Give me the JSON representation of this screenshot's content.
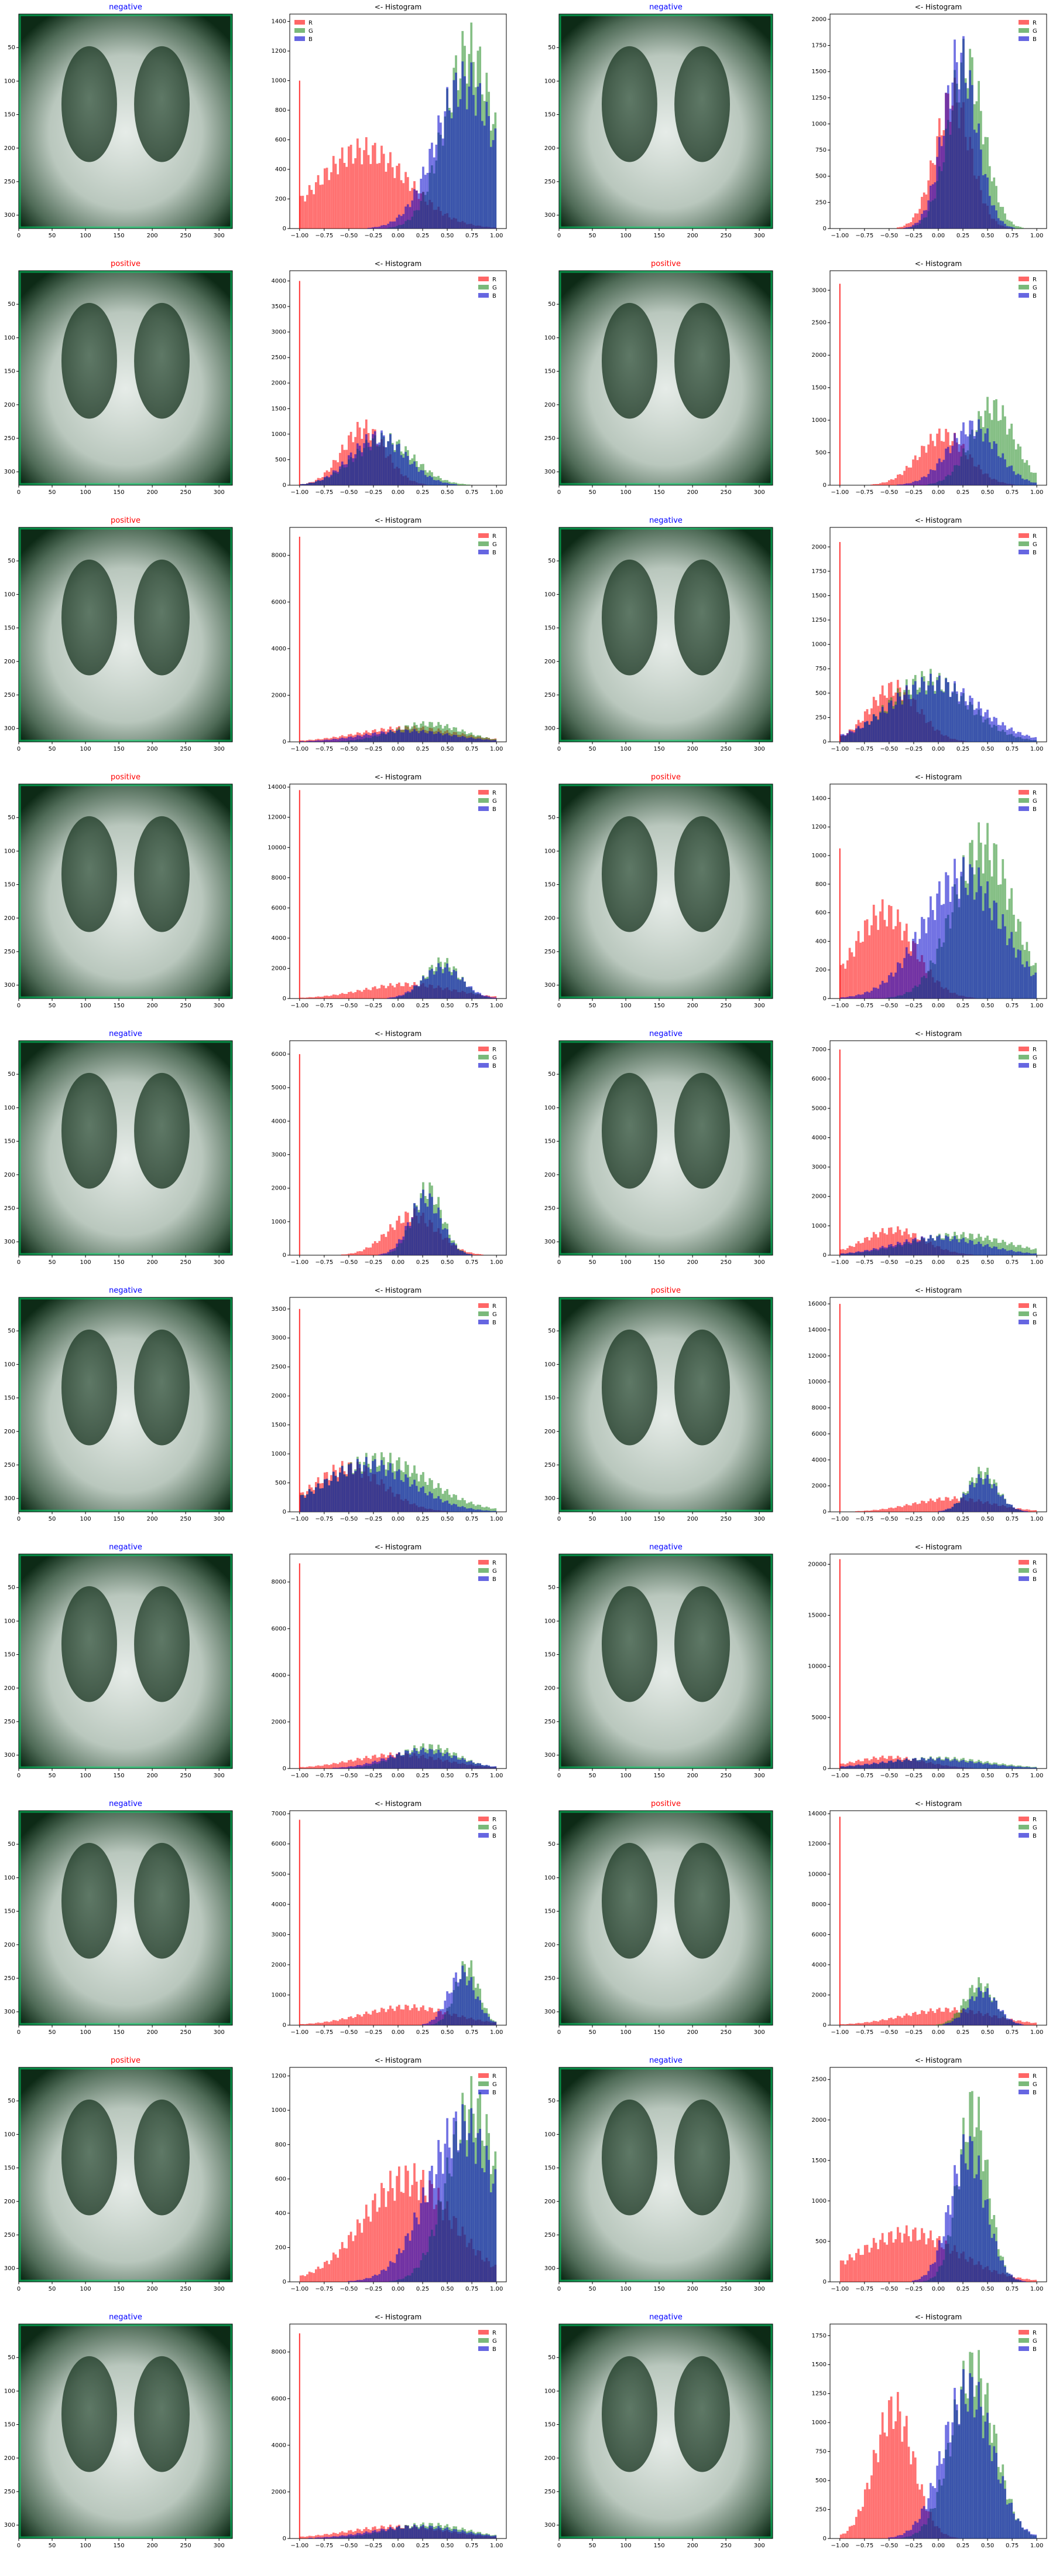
{
  "hist_title": "<- Histogram",
  "legend": [
    "R",
    "G",
    "B"
  ],
  "colors": {
    "negative": "#0000ff",
    "positive": "#ff0000",
    "R": "#ff0000",
    "G": "#228b22",
    "B": "#0000cd",
    "xray_tint": "#00e070"
  },
  "image_ticks": [
    0,
    50,
    100,
    150,
    200,
    250,
    300
  ],
  "hist_xticks": [
    "−1.00",
    "−0.75",
    "−0.50",
    "−0.25",
    "0.00",
    "0.25",
    "0.50",
    "0.75",
    "1.00"
  ],
  "chart_data": [
    {
      "type": "bar",
      "label": "negative",
      "title": "<- Histogram",
      "yticks": [
        0,
        200,
        400,
        600,
        800,
        1000,
        1200,
        1400
      ],
      "ylim": [
        0,
        1450
      ],
      "legend_placement": "top-left",
      "spike_R": 1000,
      "series": [
        {
          "name": "R",
          "mu": -0.35,
          "peak": 620,
          "sigma": 0.45
        },
        {
          "name": "G",
          "mu": 0.72,
          "peak": 1400,
          "sigma": 0.25
        },
        {
          "name": "B",
          "mu": 0.68,
          "peak": 1150,
          "sigma": 0.3
        }
      ],
      "xlim": [
        -1.1,
        1.1
      ]
    },
    {
      "type": "bar",
      "label": "negative",
      "title": "<- Histogram",
      "yticks": [
        0,
        250,
        500,
        750,
        1000,
        1250,
        1500,
        1750,
        2000
      ],
      "ylim": [
        0,
        2050
      ],
      "legend_placement": "top-right",
      "spike_R": 0,
      "series": [
        {
          "name": "R",
          "mu": 0.15,
          "peak": 1450,
          "sigma": 0.18
        },
        {
          "name": "G",
          "mu": 0.28,
          "peak": 1850,
          "sigma": 0.18
        },
        {
          "name": "B",
          "mu": 0.22,
          "peak": 1900,
          "sigma": 0.17
        }
      ],
      "xlim": [
        -1.1,
        1.1
      ]
    },
    {
      "type": "bar",
      "label": "positive",
      "title": "<- Histogram",
      "yticks": [
        0,
        500,
        1000,
        1500,
        2000,
        2500,
        3000,
        3500,
        4000
      ],
      "ylim": [
        0,
        4200
      ],
      "legend_placement": "top-right",
      "spike_R": 4000,
      "series": [
        {
          "name": "R",
          "mu": -0.35,
          "peak": 1300,
          "sigma": 0.22
        },
        {
          "name": "G",
          "mu": -0.15,
          "peak": 1050,
          "sigma": 0.3
        },
        {
          "name": "B",
          "mu": -0.2,
          "peak": 1100,
          "sigma": 0.28
        }
      ],
      "xlim": [
        -1.1,
        1.1
      ]
    },
    {
      "type": "bar",
      "label": "positive",
      "title": "<- Histogram",
      "yticks": [
        0,
        500,
        1000,
        1500,
        2000,
        2500,
        3000
      ],
      "ylim": [
        0,
        3300
      ],
      "legend_placement": "top-right",
      "spike_R": 3100,
      "series": [
        {
          "name": "R",
          "mu": 0.05,
          "peak": 900,
          "sigma": 0.25
        },
        {
          "name": "G",
          "mu": 0.55,
          "peak": 1400,
          "sigma": 0.22
        },
        {
          "name": "B",
          "mu": 0.35,
          "peak": 1050,
          "sigma": 0.25
        }
      ],
      "xlim": [
        -1.1,
        1.1
      ]
    },
    {
      "type": "bar",
      "label": "positive",
      "title": "<- Histogram",
      "yticks": [
        0,
        2000,
        4000,
        6000,
        8000
      ],
      "ylim": [
        0,
        9200
      ],
      "legend_placement": "top-right",
      "spike_R": 8800,
      "series": [
        {
          "name": "R",
          "mu": 0.1,
          "peak": 700,
          "sigma": 0.5
        },
        {
          "name": "G",
          "mu": 0.3,
          "peak": 900,
          "sigma": 0.35
        },
        {
          "name": "B",
          "mu": 0.1,
          "peak": 550,
          "sigma": 0.45
        }
      ],
      "xlim": [
        -1.1,
        1.1
      ]
    },
    {
      "type": "bar",
      "label": "negative",
      "title": "<- Histogram",
      "yticks": [
        0,
        250,
        500,
        750,
        1000,
        1250,
        1500,
        1750,
        2000
      ],
      "ylim": [
        0,
        2200
      ],
      "legend_placement": "top-right",
      "spike_R": 2050,
      "series": [
        {
          "name": "R",
          "mu": -0.45,
          "peak": 650,
          "sigma": 0.25
        },
        {
          "name": "G",
          "mu": -0.1,
          "peak": 750,
          "sigma": 0.4
        },
        {
          "name": "B",
          "mu": -0.05,
          "peak": 700,
          "sigma": 0.45
        }
      ],
      "xlim": [
        -1.1,
        1.1
      ]
    },
    {
      "type": "bar",
      "label": "positive",
      "title": "<- Histogram",
      "yticks": [
        0,
        2000,
        4000,
        6000,
        8000,
        10000,
        12000,
        14000
      ],
      "ylim": [
        0,
        14200
      ],
      "legend_placement": "top-right",
      "spike_R": 13800,
      "series": [
        {
          "name": "R",
          "mu": 0.1,
          "peak": 1100,
          "sigma": 0.45
        },
        {
          "name": "G",
          "mu": 0.45,
          "peak": 2800,
          "sigma": 0.18
        },
        {
          "name": "B",
          "mu": 0.45,
          "peak": 2400,
          "sigma": 0.2
        }
      ],
      "xlim": [
        -1.1,
        1.1
      ]
    },
    {
      "type": "bar",
      "label": "positive",
      "title": "<- Histogram",
      "yticks": [
        0,
        200,
        400,
        600,
        800,
        1000,
        1200,
        1400
      ],
      "ylim": [
        0,
        1500
      ],
      "legend_placement": "top-right",
      "spike_R": 1050,
      "series": [
        {
          "name": "R",
          "mu": -0.55,
          "peak": 700,
          "sigma": 0.3
        },
        {
          "name": "G",
          "mu": 0.45,
          "peak": 1250,
          "sigma": 0.3
        },
        {
          "name": "B",
          "mu": 0.25,
          "peak": 1000,
          "sigma": 0.4
        }
      ],
      "xlim": [
        -1.1,
        1.1
      ]
    },
    {
      "type": "bar",
      "label": "negative",
      "title": "<- Histogram",
      "yticks": [
        0,
        1000,
        2000,
        3000,
        4000,
        5000,
        6000
      ],
      "ylim": [
        0,
        6400
      ],
      "legend_placement": "top-right",
      "spike_R": 6000,
      "series": [
        {
          "name": "R",
          "mu": 0.15,
          "peak": 1400,
          "sigma": 0.25
        },
        {
          "name": "G",
          "mu": 0.3,
          "peak": 2300,
          "sigma": 0.15
        },
        {
          "name": "B",
          "mu": 0.28,
          "peak": 2000,
          "sigma": 0.16
        }
      ],
      "xlim": [
        -1.1,
        1.1
      ]
    },
    {
      "type": "bar",
      "label": "negative",
      "title": "<- Histogram",
      "yticks": [
        0,
        1000,
        2000,
        3000,
        4000,
        5000,
        6000,
        7000
      ],
      "ylim": [
        0,
        7300
      ],
      "legend_placement": "top-right",
      "spike_R": 7000,
      "series": [
        {
          "name": "R",
          "mu": -0.45,
          "peak": 1000,
          "sigma": 0.3
        },
        {
          "name": "G",
          "mu": 0.2,
          "peak": 800,
          "sigma": 0.5
        },
        {
          "name": "B",
          "mu": 0.0,
          "peak": 700,
          "sigma": 0.45
        }
      ],
      "xlim": [
        -1.1,
        1.1
      ]
    },
    {
      "type": "bar",
      "label": "negative",
      "title": "<- Histogram",
      "yticks": [
        0,
        500,
        1000,
        1500,
        2000,
        2500,
        3000,
        3500
      ],
      "ylim": [
        0,
        3700
      ],
      "legend_placement": "top-right",
      "spike_R": 3500,
      "series": [
        {
          "name": "R",
          "mu": -0.5,
          "peak": 900,
          "sigma": 0.35
        },
        {
          "name": "G",
          "mu": -0.2,
          "peak": 1050,
          "sigma": 0.5
        },
        {
          "name": "B",
          "mu": -0.3,
          "peak": 950,
          "sigma": 0.45
        }
      ],
      "xlim": [
        -1.1,
        1.1
      ]
    },
    {
      "type": "bar",
      "label": "positive",
      "title": "<- Histogram",
      "yticks": [
        0,
        2000,
        4000,
        6000,
        8000,
        10000,
        12000,
        14000,
        16000
      ],
      "ylim": [
        0,
        16500
      ],
      "legend_placement": "top-right",
      "spike_R": 16000,
      "series": [
        {
          "name": "R",
          "mu": 0.15,
          "peak": 1200,
          "sigma": 0.4
        },
        {
          "name": "G",
          "mu": 0.45,
          "peak": 3600,
          "sigma": 0.15
        },
        {
          "name": "B",
          "mu": 0.45,
          "peak": 3000,
          "sigma": 0.16
        }
      ],
      "xlim": [
        -1.1,
        1.1
      ]
    },
    {
      "type": "bar",
      "label": "negative",
      "title": "<- Histogram",
      "yticks": [
        0,
        2000,
        4000,
        6000,
        8000
      ],
      "ylim": [
        0,
        9200
      ],
      "legend_placement": "top-right",
      "spike_R": 8800,
      "series": [
        {
          "name": "R",
          "mu": 0.0,
          "peak": 700,
          "sigma": 0.45
        },
        {
          "name": "G",
          "mu": 0.3,
          "peak": 1100,
          "sigma": 0.3
        },
        {
          "name": "B",
          "mu": 0.25,
          "peak": 900,
          "sigma": 0.35
        }
      ],
      "xlim": [
        -1.1,
        1.1
      ]
    },
    {
      "type": "bar",
      "label": "negative",
      "title": "<- Histogram",
      "yticks": [
        0,
        5000,
        10000,
        15000,
        20000
      ],
      "ylim": [
        0,
        21000
      ],
      "legend_placement": "top-right",
      "spike_R": 20500,
      "series": [
        {
          "name": "R",
          "mu": -0.5,
          "peak": 1300,
          "sigma": 0.35
        },
        {
          "name": "G",
          "mu": 0.0,
          "peak": 1200,
          "sigma": 0.5
        },
        {
          "name": "B",
          "mu": -0.1,
          "peak": 1100,
          "sigma": 0.5
        }
      ],
      "xlim": [
        -1.1,
        1.1
      ]
    },
    {
      "type": "bar",
      "label": "negative",
      "title": "<- Histogram",
      "yticks": [
        0,
        1000,
        2000,
        3000,
        4000,
        5000,
        6000,
        7000
      ],
      "ylim": [
        0,
        7100
      ],
      "legend_placement": "top-right",
      "spike_R": 6800,
      "series": [
        {
          "name": "R",
          "mu": 0.1,
          "peak": 700,
          "sigma": 0.45
        },
        {
          "name": "G",
          "mu": 0.7,
          "peak": 2300,
          "sigma": 0.12
        },
        {
          "name": "B",
          "mu": 0.65,
          "peak": 2000,
          "sigma": 0.14
        }
      ],
      "xlim": [
        -1.1,
        1.1
      ]
    },
    {
      "type": "bar",
      "label": "positive",
      "title": "<- Histogram",
      "yticks": [
        0,
        2000,
        4000,
        6000,
        8000,
        10000,
        12000,
        14000
      ],
      "ylim": [
        0,
        14200
      ],
      "legend_placement": "top-right",
      "spike_R": 13800,
      "series": [
        {
          "name": "R",
          "mu": 0.1,
          "peak": 1200,
          "sigma": 0.45
        },
        {
          "name": "G",
          "mu": 0.42,
          "peak": 3200,
          "sigma": 0.15
        },
        {
          "name": "B",
          "mu": 0.45,
          "peak": 2600,
          "sigma": 0.15
        }
      ],
      "xlim": [
        -1.1,
        1.1
      ]
    },
    {
      "type": "bar",
      "label": "positive",
      "title": "<- Histogram",
      "yticks": [
        0,
        200,
        400,
        600,
        800,
        1000,
        1200
      ],
      "ylim": [
        0,
        1250
      ],
      "legend_placement": "top-right",
      "spike_R": 0,
      "series": [
        {
          "name": "R",
          "mu": 0.1,
          "peak": 700,
          "sigma": 0.45
        },
        {
          "name": "G",
          "mu": 0.75,
          "peak": 1200,
          "sigma": 0.25
        },
        {
          "name": "B",
          "mu": 0.65,
          "peak": 1050,
          "sigma": 0.35
        }
      ],
      "xlim": [
        -1.1,
        1.1
      ]
    },
    {
      "type": "bar",
      "label": "negative",
      "title": "<- Histogram",
      "yticks": [
        0,
        500,
        1000,
        1500,
        2000,
        2500
      ],
      "ylim": [
        0,
        2650
      ],
      "legend_placement": "top-right",
      "spike_R": 0,
      "series": [
        {
          "name": "R",
          "mu": -0.3,
          "peak": 700,
          "sigma": 0.5
        },
        {
          "name": "G",
          "mu": 0.35,
          "peak": 2500,
          "sigma": 0.15
        },
        {
          "name": "B",
          "mu": 0.3,
          "peak": 1900,
          "sigma": 0.18
        }
      ],
      "xlim": [
        -1.1,
        1.1
      ]
    },
    {
      "type": "bar",
      "label": "negative",
      "title": "<- Histogram",
      "yticks": [
        0,
        2000,
        4000,
        6000,
        8000
      ],
      "ylim": [
        0,
        9200
      ],
      "legend_placement": "top-right",
      "spike_R": 8800,
      "series": [
        {
          "name": "R",
          "mu": 0.0,
          "peak": 600,
          "sigma": 0.5
        },
        {
          "name": "G",
          "mu": 0.3,
          "peak": 700,
          "sigma": 0.4
        },
        {
          "name": "B",
          "mu": 0.2,
          "peak": 600,
          "sigma": 0.45
        }
      ],
      "xlim": [
        -1.1,
        1.1
      ]
    },
    {
      "type": "bar",
      "label": "negative",
      "title": "<- Histogram",
      "yticks": [
        0,
        250,
        500,
        750,
        1000,
        1250,
        1500,
        1750
      ],
      "ylim": [
        0,
        1850
      ],
      "legend_placement": "top-right",
      "spike_R": 0,
      "series": [
        {
          "name": "R",
          "mu": -0.45,
          "peak": 1300,
          "sigma": 0.2
        },
        {
          "name": "G",
          "mu": 0.35,
          "peak": 1700,
          "sigma": 0.22
        },
        {
          "name": "B",
          "mu": 0.3,
          "peak": 1500,
          "sigma": 0.25
        }
      ],
      "xlim": [
        -1.1,
        1.1
      ]
    }
  ]
}
